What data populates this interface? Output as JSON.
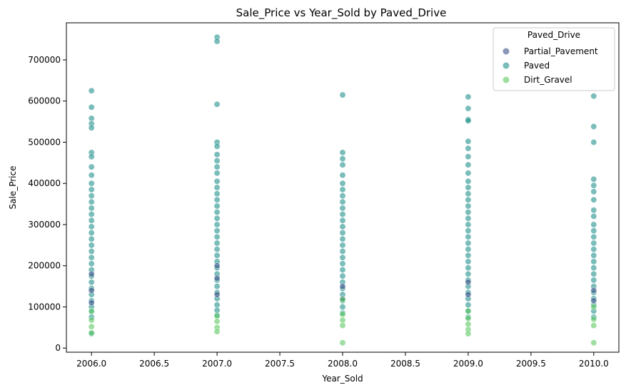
{
  "chart_data": {
    "type": "scatter",
    "title": "Sale_Price vs Year_Sold by Paved_Drive",
    "xlabel": "Year_Sold",
    "ylabel": "Sale_Price",
    "xlim": [
      1985.8,
      2010.2
    ],
    "ylim": [
      -10000,
      790000
    ],
    "xticks": [
      2006.0,
      2006.5,
      2007.0,
      2007.5,
      2008.0,
      2008.5,
      2009.0,
      2009.5,
      2010.0
    ],
    "xtick_labels": [
      "2006.0",
      "2006.5",
      "2007.0",
      "2007.5",
      "2008.0",
      "2008.5",
      "2009.0",
      "2009.5",
      "2010.0"
    ],
    "yticks": [
      0,
      100000,
      200000,
      300000,
      400000,
      500000,
      600000,
      700000
    ],
    "ytick_labels": [
      "0",
      "100000",
      "200000",
      "300000",
      "400000",
      "500000",
      "600000",
      "700000"
    ],
    "grid": false,
    "legend": {
      "title": "Paved_Drive",
      "position": "top-right",
      "entries": [
        {
          "name": "Partial_Pavement",
          "color": "#3b528b"
        },
        {
          "name": "Paved",
          "color": "#21918c"
        },
        {
          "name": "Dirt_Gravel",
          "color": "#5ec962"
        }
      ]
    },
    "point_opacity": 0.6,
    "series": [
      {
        "name": "Paved",
        "color": "#21918c",
        "points": [
          [
            2006,
            625000
          ],
          [
            2006,
            585000
          ],
          [
            2006,
            558000
          ],
          [
            2006,
            545000
          ],
          [
            2006,
            535000
          ],
          [
            2006,
            475000
          ],
          [
            2006,
            465000
          ],
          [
            2006,
            440000
          ],
          [
            2006,
            420000
          ],
          [
            2006,
            400000
          ],
          [
            2006,
            385000
          ],
          [
            2006,
            370000
          ],
          [
            2006,
            355000
          ],
          [
            2006,
            340000
          ],
          [
            2006,
            325000
          ],
          [
            2006,
            310000
          ],
          [
            2006,
            295000
          ],
          [
            2006,
            280000
          ],
          [
            2006,
            265000
          ],
          [
            2006,
            250000
          ],
          [
            2006,
            235000
          ],
          [
            2006,
            220000
          ],
          [
            2006,
            205000
          ],
          [
            2006,
            190000
          ],
          [
            2006,
            175000
          ],
          [
            2006,
            160000
          ],
          [
            2006,
            145000
          ],
          [
            2006,
            130000
          ],
          [
            2006,
            115000
          ],
          [
            2006,
            100000
          ],
          [
            2006,
            88000
          ],
          [
            2006,
            75000
          ],
          [
            2006,
            35000
          ],
          [
            2007,
            755000
          ],
          [
            2007,
            745000
          ],
          [
            2007,
            592000
          ],
          [
            2007,
            500000
          ],
          [
            2007,
            490000
          ],
          [
            2007,
            470000
          ],
          [
            2007,
            455000
          ],
          [
            2007,
            440000
          ],
          [
            2007,
            425000
          ],
          [
            2007,
            405000
          ],
          [
            2007,
            390000
          ],
          [
            2007,
            375000
          ],
          [
            2007,
            360000
          ],
          [
            2007,
            345000
          ],
          [
            2007,
            330000
          ],
          [
            2007,
            315000
          ],
          [
            2007,
            300000
          ],
          [
            2007,
            285000
          ],
          [
            2007,
            270000
          ],
          [
            2007,
            255000
          ],
          [
            2007,
            240000
          ],
          [
            2007,
            225000
          ],
          [
            2007,
            210000
          ],
          [
            2007,
            195000
          ],
          [
            2007,
            180000
          ],
          [
            2007,
            165000
          ],
          [
            2007,
            150000
          ],
          [
            2007,
            135000
          ],
          [
            2007,
            120000
          ],
          [
            2007,
            105000
          ],
          [
            2007,
            92000
          ],
          [
            2007,
            80000
          ],
          [
            2008,
            615000
          ],
          [
            2008,
            475000
          ],
          [
            2008,
            460000
          ],
          [
            2008,
            445000
          ],
          [
            2008,
            420000
          ],
          [
            2008,
            400000
          ],
          [
            2008,
            385000
          ],
          [
            2008,
            370000
          ],
          [
            2008,
            355000
          ],
          [
            2008,
            340000
          ],
          [
            2008,
            325000
          ],
          [
            2008,
            310000
          ],
          [
            2008,
            295000
          ],
          [
            2008,
            280000
          ],
          [
            2008,
            265000
          ],
          [
            2008,
            250000
          ],
          [
            2008,
            235000
          ],
          [
            2008,
            220000
          ],
          [
            2008,
            205000
          ],
          [
            2008,
            190000
          ],
          [
            2008,
            175000
          ],
          [
            2008,
            160000
          ],
          [
            2008,
            145000
          ],
          [
            2008,
            130000
          ],
          [
            2008,
            115000
          ],
          [
            2008,
            100000
          ],
          [
            2008,
            85000
          ],
          [
            2009,
            610000
          ],
          [
            2009,
            582000
          ],
          [
            2009,
            555000
          ],
          [
            2009,
            552000
          ],
          [
            2009,
            502000
          ],
          [
            2009,
            485000
          ],
          [
            2009,
            465000
          ],
          [
            2009,
            445000
          ],
          [
            2009,
            425000
          ],
          [
            2009,
            405000
          ],
          [
            2009,
            390000
          ],
          [
            2009,
            375000
          ],
          [
            2009,
            360000
          ],
          [
            2009,
            345000
          ],
          [
            2009,
            330000
          ],
          [
            2009,
            315000
          ],
          [
            2009,
            300000
          ],
          [
            2009,
            285000
          ],
          [
            2009,
            270000
          ],
          [
            2009,
            255000
          ],
          [
            2009,
            240000
          ],
          [
            2009,
            225000
          ],
          [
            2009,
            210000
          ],
          [
            2009,
            195000
          ],
          [
            2009,
            180000
          ],
          [
            2009,
            165000
          ],
          [
            2009,
            150000
          ],
          [
            2009,
            135000
          ],
          [
            2009,
            120000
          ],
          [
            2009,
            105000
          ],
          [
            2009,
            90000
          ],
          [
            2009,
            75000
          ],
          [
            2010,
            612000
          ],
          [
            2010,
            538000
          ],
          [
            2010,
            500000
          ],
          [
            2010,
            410000
          ],
          [
            2010,
            395000
          ],
          [
            2010,
            380000
          ],
          [
            2010,
            360000
          ],
          [
            2010,
            335000
          ],
          [
            2010,
            320000
          ],
          [
            2010,
            300000
          ],
          [
            2010,
            285000
          ],
          [
            2010,
            270000
          ],
          [
            2010,
            255000
          ],
          [
            2010,
            240000
          ],
          [
            2010,
            225000
          ],
          [
            2010,
            210000
          ],
          [
            2010,
            195000
          ],
          [
            2010,
            180000
          ],
          [
            2010,
            165000
          ],
          [
            2010,
            150000
          ],
          [
            2010,
            135000
          ],
          [
            2010,
            120000
          ],
          [
            2010,
            105000
          ],
          [
            2010,
            90000
          ],
          [
            2010,
            75000
          ]
        ]
      },
      {
        "name": "Partial_Pavement",
        "color": "#3b528b",
        "points": [
          [
            2006,
            180000
          ],
          [
            2006,
            140000
          ],
          [
            2006,
            110000
          ],
          [
            2007,
            200000
          ],
          [
            2007,
            170000
          ],
          [
            2007,
            130000
          ],
          [
            2008,
            150000
          ],
          [
            2008,
            120000
          ],
          [
            2009,
            160000
          ],
          [
            2009,
            130000
          ],
          [
            2010,
            140000
          ],
          [
            2010,
            115000
          ]
        ]
      },
      {
        "name": "Dirt_Gravel",
        "color": "#5ec962",
        "points": [
          [
            2006,
            90000
          ],
          [
            2006,
            68000
          ],
          [
            2006,
            52000
          ],
          [
            2006,
            37000
          ],
          [
            2007,
            78000
          ],
          [
            2007,
            65000
          ],
          [
            2007,
            50000
          ],
          [
            2007,
            40000
          ],
          [
            2008,
            118000
          ],
          [
            2008,
            82000
          ],
          [
            2008,
            68000
          ],
          [
            2008,
            55000
          ],
          [
            2008,
            13000
          ],
          [
            2009,
            90000
          ],
          [
            2009,
            72000
          ],
          [
            2009,
            58000
          ],
          [
            2009,
            45000
          ],
          [
            2009,
            35000
          ],
          [
            2010,
            100000
          ],
          [
            2010,
            70000
          ],
          [
            2010,
            55000
          ],
          [
            2010,
            13000
          ]
        ]
      }
    ]
  }
}
